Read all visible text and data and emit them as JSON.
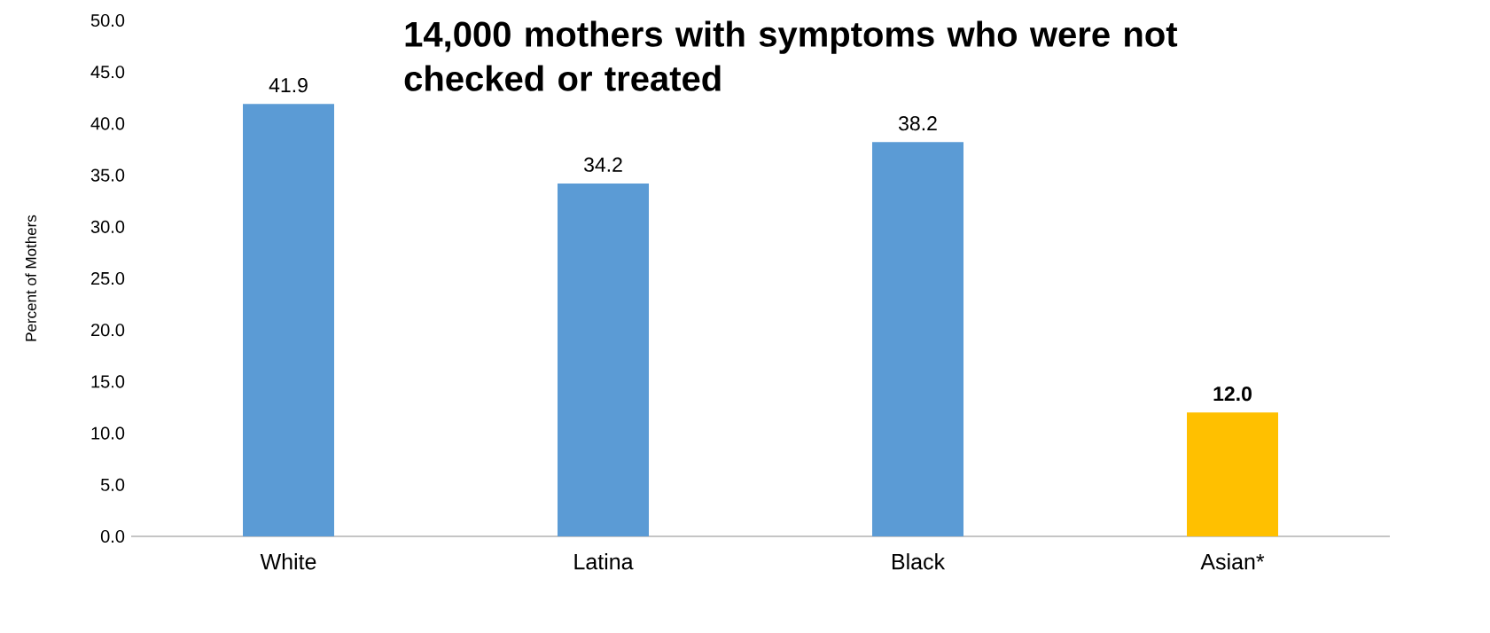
{
  "chart_data": {
    "type": "bar",
    "title": "14,000 mothers with symptoms who were not checked or treated",
    "ylabel": "Percent of Mothers",
    "categories": [
      "White",
      "Latina",
      "Black",
      "Asian*"
    ],
    "values": [
      41.9,
      34.2,
      38.2,
      12.0
    ],
    "colors": [
      "#5b9bd5",
      "#5b9bd5",
      "#5b9bd5",
      "#ffc000"
    ],
    "value_labels": [
      "41.9",
      "34.2",
      "38.2",
      "**12.0**"
    ],
    "ylim": [
      0,
      50
    ],
    "yticks": [
      {
        "value": 0,
        "label": "0.0"
      },
      {
        "value": 5,
        "label": "5.0"
      },
      {
        "value": 10,
        "label": "10.0"
      },
      {
        "value": 15,
        "label": "15.0"
      },
      {
        "value": 20,
        "label": "20.0"
      },
      {
        "value": 25,
        "label": "25.0"
      },
      {
        "value": 30,
        "label": "30.0"
      },
      {
        "value": 35,
        "label": "35.0"
      },
      {
        "value": 40,
        "label": "40.0"
      },
      {
        "value": 45,
        "label": "45.0"
      },
      {
        "value": 50,
        "label": "50.0"
      }
    ],
    "grid": false
  }
}
